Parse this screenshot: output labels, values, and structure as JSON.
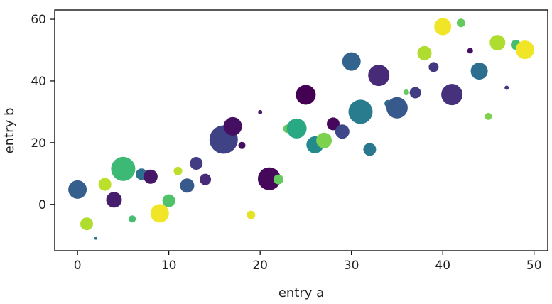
{
  "chart_data": {
    "type": "scatter",
    "title": "",
    "xlabel": "entry a",
    "ylabel": "entry b",
    "xlim": [
      -2.5,
      51.5
    ],
    "ylim": [
      -15,
      63
    ],
    "xticks": [
      0,
      10,
      20,
      30,
      40,
      50
    ],
    "yticks": [
      0,
      20,
      40,
      60
    ],
    "grid": false,
    "colormap": "viridis",
    "color_range": [
      0,
      50
    ],
    "points": [
      {
        "x": 0,
        "y": 4.8,
        "size": 13,
        "color": 15
      },
      {
        "x": 1,
        "y": -6.3,
        "size": 9,
        "color": 44
      },
      {
        "x": 2,
        "y": -11,
        "size": 2,
        "color": 19
      },
      {
        "x": 3,
        "y": 6.5,
        "size": 9,
        "color": 45
      },
      {
        "x": 4,
        "y": 1.5,
        "size": 11,
        "color": 4
      },
      {
        "x": 5,
        "y": 11.5,
        "size": 17,
        "color": 34
      },
      {
        "x": 6,
        "y": -4.7,
        "size": 5,
        "color": 35
      },
      {
        "x": 7,
        "y": 9.8,
        "size": 8,
        "color": 18
      },
      {
        "x": 8,
        "y": 9,
        "size": 10,
        "color": 3
      },
      {
        "x": 9,
        "y": -2.9,
        "size": 13,
        "color": 49
      },
      {
        "x": 10,
        "y": 1.2,
        "size": 9,
        "color": 36
      },
      {
        "x": 11,
        "y": 10.8,
        "size": 6,
        "color": 45
      },
      {
        "x": 12,
        "y": 6.1,
        "size": 10,
        "color": 14
      },
      {
        "x": 13,
        "y": 13.3,
        "size": 9,
        "color": 9
      },
      {
        "x": 14,
        "y": 8.1,
        "size": 8,
        "color": 6
      },
      {
        "x": 16,
        "y": 21,
        "size": 20,
        "color": 10
      },
      {
        "x": 17,
        "y": 25.3,
        "size": 13,
        "color": 2
      },
      {
        "x": 18,
        "y": 19.1,
        "size": 5,
        "color": 2
      },
      {
        "x": 19,
        "y": -3.4,
        "size": 6,
        "color": 48
      },
      {
        "x": 20,
        "y": 29.9,
        "size": 3,
        "color": 4
      },
      {
        "x": 21,
        "y": 8.3,
        "size": 16,
        "color": 1
      },
      {
        "x": 22,
        "y": 8.1,
        "size": 7,
        "color": 38
      },
      {
        "x": 23,
        "y": 24.5,
        "size": 6,
        "color": 38
      },
      {
        "x": 24,
        "y": 24.6,
        "size": 14,
        "color": 30
      },
      {
        "x": 25,
        "y": 35.5,
        "size": 14,
        "color": 0
      },
      {
        "x": 26,
        "y": 19.3,
        "size": 12,
        "color": 24
      },
      {
        "x": 27,
        "y": 20.7,
        "size": 11,
        "color": 40
      },
      {
        "x": 28,
        "y": 26.1,
        "size": 9,
        "color": 1
      },
      {
        "x": 29,
        "y": 23.6,
        "size": 10,
        "color": 11
      },
      {
        "x": 30,
        "y": 46.3,
        "size": 13,
        "color": 16
      },
      {
        "x": 31,
        "y": 30,
        "size": 17,
        "color": 21
      },
      {
        "x": 32,
        "y": 17.8,
        "size": 9,
        "color": 20
      },
      {
        "x": 33,
        "y": 41.8,
        "size": 15,
        "color": 6
      },
      {
        "x": 34,
        "y": 32.7,
        "size": 5,
        "color": 17
      },
      {
        "x": 35,
        "y": 31.3,
        "size": 15,
        "color": 14
      },
      {
        "x": 36,
        "y": 36.3,
        "size": 4,
        "color": 38
      },
      {
        "x": 37,
        "y": 36.2,
        "size": 8,
        "color": 9
      },
      {
        "x": 38,
        "y": 49,
        "size": 10,
        "color": 44
      },
      {
        "x": 39,
        "y": 44.5,
        "size": 7,
        "color": 8
      },
      {
        "x": 40,
        "y": 57.6,
        "size": 12,
        "color": 49
      },
      {
        "x": 41,
        "y": 35.6,
        "size": 15,
        "color": 7
      },
      {
        "x": 42,
        "y": 58.8,
        "size": 6,
        "color": 38
      },
      {
        "x": 43,
        "y": 49.8,
        "size": 4,
        "color": 2
      },
      {
        "x": 44,
        "y": 43.2,
        "size": 12,
        "color": 18
      },
      {
        "x": 45,
        "y": 28.5,
        "size": 5,
        "color": 40
      },
      {
        "x": 46,
        "y": 52.4,
        "size": 11,
        "color": 44
      },
      {
        "x": 47,
        "y": 37.8,
        "size": 3,
        "color": 8
      },
      {
        "x": 48,
        "y": 51.7,
        "size": 7,
        "color": 35
      },
      {
        "x": 49,
        "y": 50.1,
        "size": 13,
        "color": 49
      }
    ]
  }
}
